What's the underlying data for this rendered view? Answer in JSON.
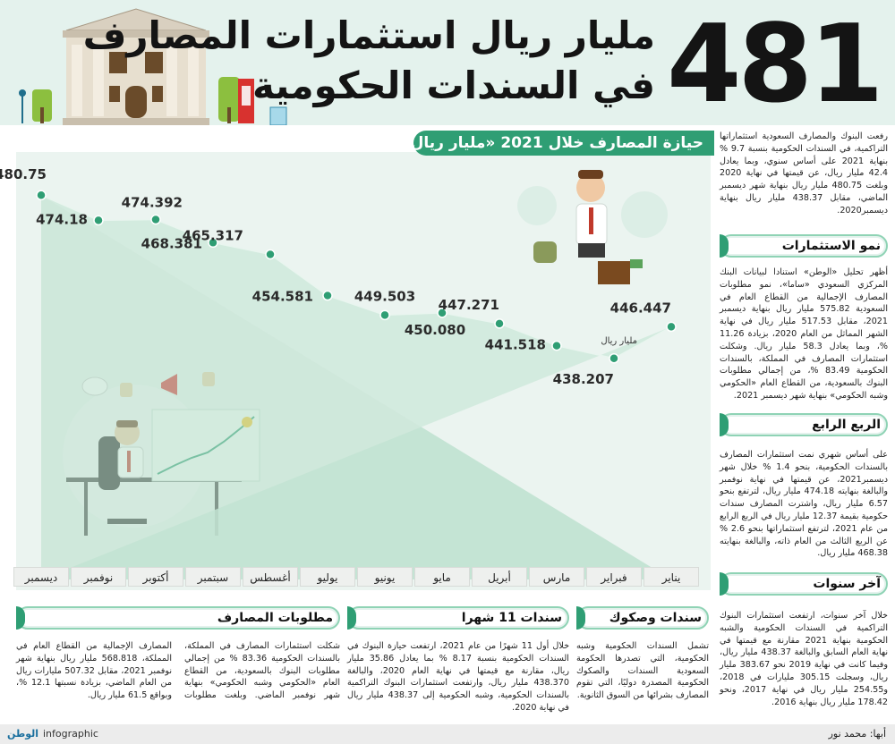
{
  "header": {
    "big_number": "481",
    "headline_line1": "مليار ريال استثمارات المصارف",
    "headline_line2": "في السندات الحكومية"
  },
  "chart_data": {
    "type": "line",
    "title": "حيازة المصارف خلال 2021 «مليار ريال»",
    "categories": [
      "يناير",
      "فبراير",
      "مارس",
      "أبريل",
      "مايو",
      "يونيو",
      "يوليو",
      "أغسطس",
      "سبتمبر",
      "أكتوبر",
      "نوفمبر",
      "ديسمبر"
    ],
    "values": [
      446.447,
      438.207,
      441.518,
      447.271,
      450.08,
      449.503,
      454.581,
      465.317,
      468.381,
      474.392,
      474.18,
      480.75
    ],
    "labels": [
      "446.447",
      "438.207",
      "441.518",
      "447.271",
      "450.080",
      "449.503",
      "454.581",
      "465.317",
      "468.381",
      "474.392",
      "474.18",
      "480.75"
    ],
    "unit_label": "مليار ريال",
    "ylim": [
      430,
      485
    ],
    "accent": "#2f9e74"
  },
  "right_column": {
    "intro": "رفعت البنوك والمصارف السعودية استثماراتها التراكمية، في السندات الحكومية بنسبة 9.7 % بنهاية 2021 على أساس سنوي، وبما يعادل 42.4 مليار ريال، عن قيمتها في نهاية 2020 وبلغت 480.75 مليار ريال بنهاية شهر ديسمبر الماضي، مقابل 438.37 مليار ريال بنهاية ديسمبر2020.",
    "section1_title": "نمو الاستثمارات",
    "section1_text": "أظهر تحليل «الوطن» استنادا لبيانات البنك المركزي السعودي «ساما»، نمو مطلوبات المصارف الإجمالية من القطاع العام في السعودية 575.82 مليار ريال بنهاية ديسمبر 2021، مقابل 517.53 مليار ريال في نهاية الشهر المماثل من العام 2020، بزيادة 11.26 %، وبما يعادل 58.3 مليار ريال. وشكلت استثمارات المصارف في المملكة، بالسندات الحكومية 83.49 %، من إجمالي مطلوبات البنوك بالسعودية، من القطاع العام «الحكومي وشبه الحكومي» بنهاية شهر ديسمبر 2021.",
    "section2_title": "الربع الرابع",
    "section2_text": "على أساس شهري نمت استثمارات المصارف بالسندات الحكومية، بنحو 1.4 % خلال شهر ديسمبر2021، عن قيمتها في نهاية نوفمبر والبالغة بنهايته 474.18 مليار ريال، لترتفع بنحو 6.57 مليار ريال، واشترت المصارف سندات حكومية بقيمة 12.37 مليار ريال في الربع الرابع من عام 2021، لترتفع استثماراتها بنحو 2.6 % عن الربع الثالث من العام ذاته، والبالغة بنهايته 468.38 مليار ريال.",
    "section3_title": "آخر سنوات",
    "section3_text": "خلال آخر سنوات، ارتفعت استثمارات البنوك التراكمية في السندات الحكومية والشبه الحكومية بنهاية 2021 مقارنة مع قيمتها في نهاية العام السابق والبالغة 438.37 مليار ريال، وفيما كانت في نهاية 2019 نحو 383.67 مليار ريال، وسجلت 305.15 مليارات في 2018، و254.55 مليار ريال في نهاية 2017، ونحو 178.42 مليار ريال بنهاية 2016."
  },
  "bottom": {
    "col1_title": "سندات وصكوك",
    "col1_text": "تشمل السندات الحكومية وشبه الحكومية، التي تصدرها الحكومة السعودية السندات والصكوك الحكومية المصدرة دوليًا، التي تقوم المصارف بشرائها من السوق الثانوية.",
    "col2_title": "سندات 11 شهرا",
    "col2_text": "خلال أول 11 شهرًا من عام 2021، ارتفعت حيازة البنوك في السندات الحكومية بنسبة 8.17 % بما يعادل 35.86 مليار ريال، مقارنة مع قيمتها في نهاية العام 2020، والبالغة 438.370 مليار ريال، وارتفعت استثمارات البنوك التراكمية بالسندات الحكومية، وشبه الحكومية إلى 438.37 مليار ريال في نهاية 2020.",
    "col3_title": "مطلوبات المصارف",
    "col3_text": "شكلت استثمارات المصارف في المملكة، بالسندات الحكومية 83.36 % من إجمالي مطلوبات البنوك بالسعودية، من القطاع العام «الحكومي وشبه الحكومي» بنهاية شهر نوفمبر الماضي. وبلغت مطلوبات المصارف الإجمالية من القطاع العام في المملكة، 568.818 مليار ريال بنهاية شهر نوفمبر 2021، مقابل 507.32 مليارات ريال من العام الماضي، بزيادة نسبتها 12.1 %، وبواقع 61.5 مليار ريال."
  },
  "footer": {
    "credit": "أبها: محمد نور",
    "brand": "الوطن",
    "infographic": "infographic"
  },
  "icons": [
    "bank-building-icon",
    "street-lamp-icon",
    "tree-icon",
    "phone-booth-icon",
    "businessman-money-icon",
    "office-worker-icon",
    "growth-chart-icon",
    "megaphone-icon",
    "thumbs-up-icon",
    "chat-bubble-icon",
    "lightbulb-icon"
  ]
}
